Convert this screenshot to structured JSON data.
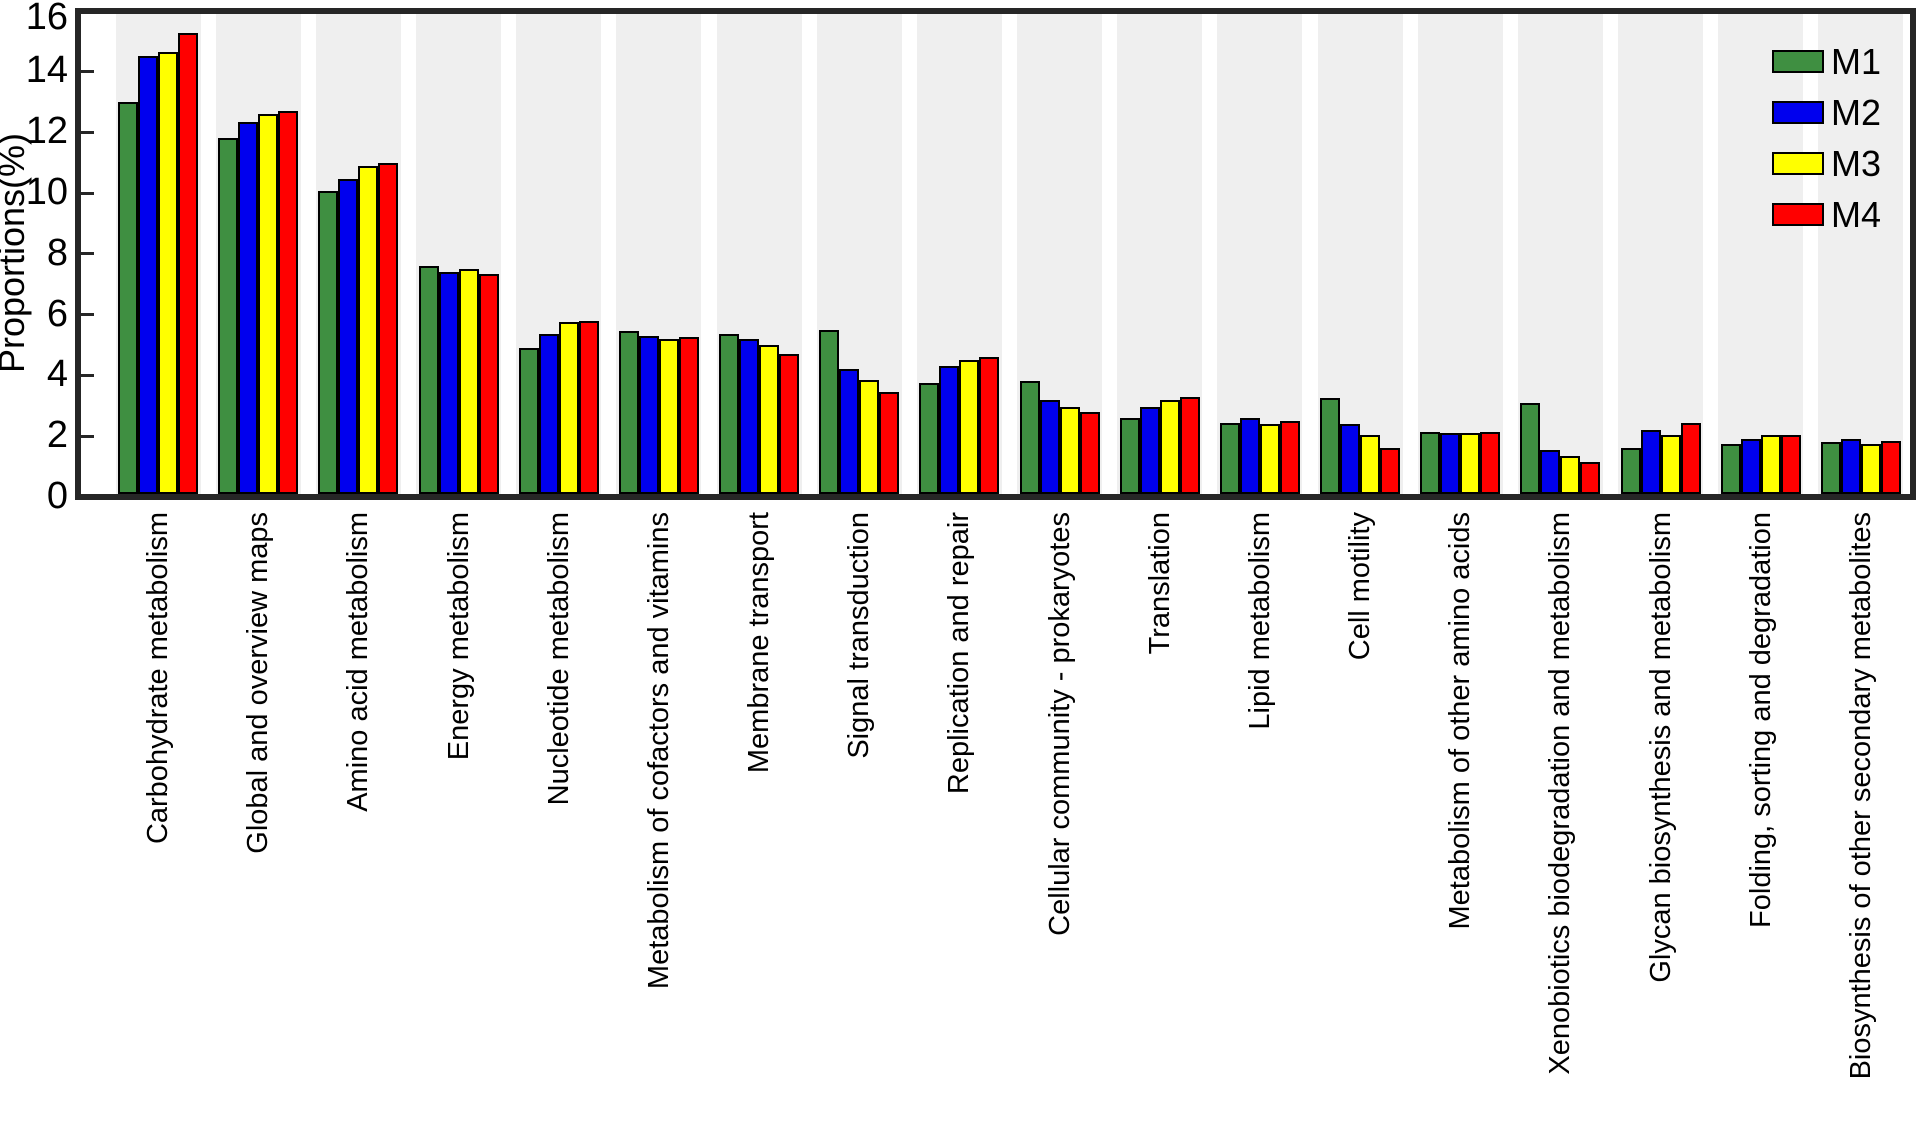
{
  "figure": {
    "background": "#ffffff",
    "stripe_color": "#efefef",
    "axis_color": "#262626"
  },
  "chart_data": {
    "type": "bar",
    "title": "",
    "xlabel": "",
    "ylabel": "Proportions(%)",
    "ylim": [
      0,
      16
    ],
    "yticks": [
      0,
      2,
      4,
      6,
      8,
      10,
      12,
      14,
      16
    ],
    "grid": false,
    "legend_position": "top-right-inside",
    "background_stripes": "alternating light-gray band behind each category group",
    "categories": [
      "Carbohydrate metabolism",
      "Global and overview maps",
      "Amino acid metabolism",
      "Energy metabolism",
      "Nucleotide metabolism",
      "Metabolism of cofactors and vitamins",
      "Membrane transport",
      "Signal transduction",
      "Replication and repair",
      "Cellular community - prokaryotes",
      "Translation",
      "Lipid metabolism",
      "Cell motility",
      "Metabolism of other amino acids",
      "Xenobiotics biodegradation and metabolism",
      "Glycan biosynthesis and metabolism",
      "Folding, sorting and degradation",
      "Biosynthesis of other secondary metabolites"
    ],
    "series": [
      {
        "name": "M1",
        "color": "#3f8f41",
        "values": [
          13.0,
          11.8,
          10.05,
          7.6,
          4.9,
          5.45,
          5.35,
          5.5,
          3.75,
          3.8,
          2.6,
          2.45,
          3.25,
          2.15,
          3.1,
          1.6,
          1.75,
          1.8
        ]
      },
      {
        "name": "M2",
        "color": "#0000ee",
        "values": [
          14.5,
          12.35,
          10.45,
          7.4,
          5.35,
          5.3,
          5.2,
          4.2,
          4.3,
          3.2,
          2.95,
          2.6,
          2.4,
          2.1,
          1.55,
          2.2,
          1.9,
          1.9
        ]
      },
      {
        "name": "M3",
        "color": "#ffff00",
        "values": [
          14.65,
          12.6,
          10.9,
          7.5,
          5.75,
          5.2,
          5.0,
          3.85,
          4.5,
          2.95,
          3.2,
          2.4,
          2.05,
          2.1,
          1.35,
          2.05,
          2.05,
          1.75
        ]
      },
      {
        "name": "M4",
        "color": "#ff0000",
        "values": [
          15.25,
          12.7,
          11.0,
          7.35,
          5.8,
          5.25,
          4.7,
          3.45,
          4.6,
          2.8,
          3.3,
          2.5,
          1.6,
          2.15,
          1.15,
          2.45,
          2.05,
          1.85
        ]
      }
    ]
  }
}
